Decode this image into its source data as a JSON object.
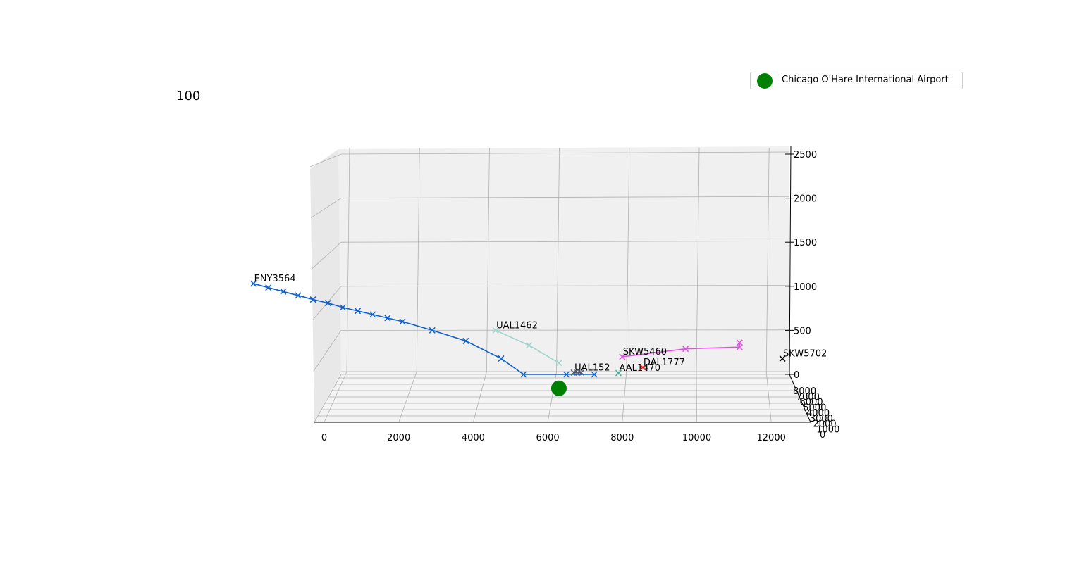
{
  "chart_data": {
    "type": "scatter",
    "subtype": "3d-line",
    "frame_label": "100",
    "xticks": [
      "0",
      "2000",
      "4000",
      "6000",
      "8000",
      "10000",
      "12000"
    ],
    "yticks": [
      "0",
      "1000",
      "2000",
      "3000",
      "4000",
      "5000",
      "6000",
      "7000",
      "8000"
    ],
    "zticks": [
      "0",
      "500",
      "1000",
      "1500",
      "2000",
      "2500"
    ],
    "xlim": [
      0,
      12500
    ],
    "zlim": [
      0,
      2500
    ],
    "grid": true,
    "legend": {
      "placement": "top-right",
      "entries": [
        {
          "label": "Chicago O'Hare International Airport",
          "color": "#008000"
        }
      ]
    },
    "airport": {
      "x": 6300,
      "y": 0,
      "z": -150,
      "color": "#008000"
    },
    "series": [
      {
        "name": "ENY3564",
        "color": "#1060c8",
        "points": [
          {
            "x": -1900,
            "z": 1030
          },
          {
            "x": -1500,
            "z": 985
          },
          {
            "x": -1100,
            "z": 940
          },
          {
            "x": -700,
            "z": 895
          },
          {
            "x": -300,
            "z": 850
          },
          {
            "x": 100,
            "z": 810
          },
          {
            "x": 500,
            "z": 760
          },
          {
            "x": 900,
            "z": 720
          },
          {
            "x": 1300,
            "z": 680
          },
          {
            "x": 1700,
            "z": 640
          },
          {
            "x": 2100,
            "z": 600
          },
          {
            "x": 2900,
            "z": 500
          },
          {
            "x": 3800,
            "z": 380
          },
          {
            "x": 4750,
            "z": 180
          },
          {
            "x": 5350,
            "z": 0
          },
          {
            "x": 6500,
            "z": 0
          },
          {
            "x": 7250,
            "z": 0
          }
        ]
      },
      {
        "name": "UAL1462",
        "color": "#a0d4cc",
        "points": [
          {
            "x": 4600,
            "z": 500
          },
          {
            "x": 5500,
            "z": 330
          },
          {
            "x": 6300,
            "z": 130
          }
        ]
      },
      {
        "name": "UAL152",
        "color": "#505a78",
        "points": [
          {
            "x": 6700,
            "z": 20
          },
          {
            "x": 6800,
            "z": 20
          },
          {
            "x": 6900,
            "z": 20
          }
        ]
      },
      {
        "name": "AAL1470",
        "color": "#40b4a0",
        "points": [
          {
            "x": 7900,
            "z": 15
          }
        ]
      },
      {
        "name": "DAL1777",
        "color": "#e01010",
        "points": [
          {
            "x": 8550,
            "z": 80
          }
        ]
      },
      {
        "name": "SKW5460",
        "color": "#e050e0",
        "points": [
          {
            "x": 8000,
            "z": 200
          },
          {
            "x": 9700,
            "z": 290
          },
          {
            "x": 11150,
            "z": 310
          },
          {
            "x": 11150,
            "z": 360
          }
        ]
      },
      {
        "name": "SKW5702",
        "color": "#000000",
        "points": [
          {
            "x": 12300,
            "z": 180
          }
        ]
      }
    ]
  }
}
